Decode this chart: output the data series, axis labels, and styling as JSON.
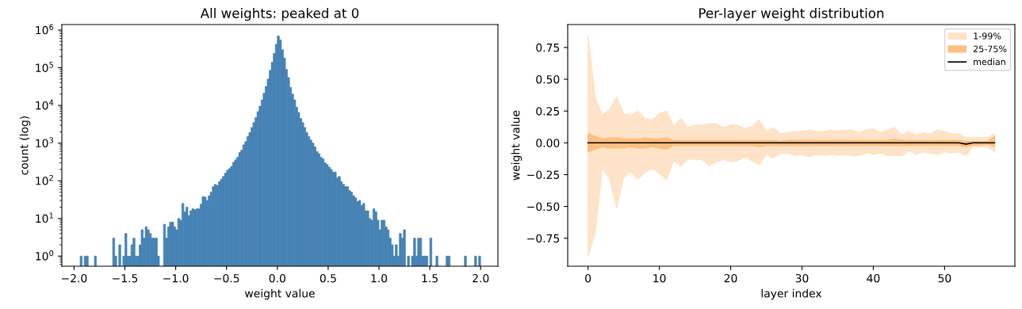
{
  "chart_data": [
    {
      "type": "histogram",
      "title": "All weights: peaked at 0",
      "xlabel": "weight value",
      "ylabel": "count (log)",
      "color": "#4682b4",
      "log": "y",
      "grid": false,
      "legend": false,
      "bins": [
        -2.0,
        -1.98,
        -1.96,
        -1.94,
        -1.92,
        -1.9,
        -1.88,
        -1.86,
        -1.84,
        -1.82,
        -1.8,
        -1.78,
        -1.76,
        -1.74,
        -1.72,
        -1.7,
        -1.68,
        -1.66,
        -1.64,
        -1.62,
        -1.6,
        -1.58,
        -1.56,
        -1.54,
        -1.52,
        -1.5,
        -1.48,
        -1.46,
        -1.44,
        -1.42,
        -1.4,
        -1.38,
        -1.36,
        -1.34,
        -1.32,
        -1.3,
        -1.28,
        -1.26,
        -1.24,
        -1.22,
        -1.2,
        -1.18,
        -1.16,
        -1.14,
        -1.12,
        -1.1,
        -1.08,
        -1.06,
        -1.04,
        -1.02,
        -1.0,
        -0.98,
        -0.96,
        -0.94,
        -0.92,
        -0.9,
        -0.88,
        -0.86,
        -0.84,
        -0.82,
        -0.8,
        -0.78,
        -0.76,
        -0.74,
        -0.72,
        -0.7,
        -0.68,
        -0.66,
        -0.64,
        -0.62,
        -0.6,
        -0.58,
        -0.56,
        -0.54,
        -0.52,
        -0.5,
        -0.48,
        -0.46,
        -0.44,
        -0.42,
        -0.4,
        -0.38,
        -0.36,
        -0.34,
        -0.32,
        -0.3,
        -0.28,
        -0.26,
        -0.24,
        -0.22,
        -0.2,
        -0.18,
        -0.16,
        -0.14,
        -0.12,
        -0.1,
        -0.08,
        -0.06,
        -0.04,
        -0.02,
        0.0,
        0.02,
        0.04,
        0.06,
        0.08,
        0.1,
        0.12,
        0.14,
        0.16,
        0.18,
        0.2,
        0.22,
        0.24,
        0.26,
        0.28,
        0.3,
        0.32,
        0.34,
        0.36,
        0.38,
        0.4,
        0.42,
        0.44,
        0.46,
        0.48,
        0.5,
        0.52,
        0.54,
        0.56,
        0.58,
        0.6,
        0.62,
        0.64,
        0.66,
        0.68,
        0.7,
        0.72,
        0.74,
        0.76,
        0.78,
        0.8,
        0.82,
        0.84,
        0.86,
        0.88,
        0.9,
        0.92,
        0.94,
        0.96,
        0.98,
        1.0,
        1.02,
        1.04,
        1.06,
        1.08,
        1.1,
        1.12,
        1.14,
        1.16,
        1.18,
        1.2,
        1.22,
        1.24,
        1.26,
        1.28,
        1.3,
        1.32,
        1.34,
        1.36,
        1.38,
        1.4,
        1.42,
        1.44,
        1.46,
        1.48,
        1.5,
        1.52,
        1.54,
        1.56,
        1.58,
        1.6,
        1.62,
        1.64,
        1.66,
        1.68,
        1.7,
        1.72,
        1.74,
        1.76,
        1.78,
        1.8,
        1.82,
        1.84,
        1.86,
        1.88,
        1.9,
        1.92,
        1.94,
        1.96,
        1.98,
        2.0
      ],
      "values": [
        null,
        null,
        null,
        1,
        null,
        1,
        1,
        null,
        null,
        null,
        1,
        null,
        null,
        null,
        null,
        null,
        null,
        null,
        null,
        3,
        1,
        null,
        2,
        null,
        1,
        4,
        1,
        1,
        2,
        3,
        1,
        1,
        2,
        5,
        3,
        6,
        5,
        4,
        3,
        3,
        3,
        1,
        null,
        null,
        7,
        3,
        6,
        8,
        8,
        6,
        5,
        10,
        9,
        25,
        15,
        20,
        12,
        16,
        18,
        17,
        18,
        18,
        24,
        38,
        37,
        30,
        40,
        50,
        70,
        80,
        75,
        95,
        110,
        130,
        160,
        190,
        210,
        240,
        310,
        360,
        420,
        560,
        650,
        900,
        1100,
        1500,
        1900,
        2600,
        3500,
        4800,
        6800,
        9500,
        14000,
        21000,
        32000,
        50000,
        85000,
        140000,
        240000,
        420000,
        700000,
        550000,
        300000,
        180000,
        90000,
        55000,
        30000,
        20000,
        14000,
        9000,
        6500,
        4500,
        3500,
        2600,
        1900,
        1500,
        1200,
        1000,
        800,
        600,
        520,
        420,
        380,
        300,
        270,
        230,
        200,
        170,
        170,
        120,
        130,
        95,
        80,
        70,
        70,
        55,
        50,
        40,
        35,
        28,
        30,
        22,
        25,
        16,
        16,
        10,
        9,
        18,
        15,
        9,
        5,
        9,
        9,
        6,
        5,
        3,
        2,
        1,
        2,
        1,
        4,
        3,
        5,
        null,
        1,
        null,
        1,
        3,
        1,
        3,
        3,
        1,
        1,
        1,
        null,
        3,
        null,
        null,
        1,
        null,
        null,
        null,
        null,
        1,
        1,
        null,
        null,
        null,
        null,
        null,
        null,
        null,
        1,
        null,
        null,
        null,
        null,
        1,
        null,
        1
      ],
      "xlim": [
        -2.12,
        2.17
      ],
      "ylim": [
        0.54,
        1400000
      ],
      "xticks": [
        {
          "value": -2.0,
          "label": "−2.0"
        },
        {
          "value": -1.5,
          "label": "−1.5"
        },
        {
          "value": -1.0,
          "label": "−1.0"
        },
        {
          "value": -0.5,
          "label": "−0.5"
        },
        {
          "value": 0.0,
          "label": "0.0"
        },
        {
          "value": 0.5,
          "label": "0.5"
        },
        {
          "value": 1.0,
          "label": "1.0"
        },
        {
          "value": 1.5,
          "label": "1.5"
        },
        {
          "value": 2.0,
          "label": "2.0"
        }
      ],
      "yticks": [
        {
          "value": 1,
          "label": "10$^{0}$"
        },
        {
          "value": 10,
          "label": "10$^{1}$"
        },
        {
          "value": 100,
          "label": "10$^{2}$"
        },
        {
          "value": 1000,
          "label": "10$^{3}$"
        },
        {
          "value": 10000,
          "label": "10$^{4}$"
        },
        {
          "value": 100000,
          "label": "10$^{5}$"
        },
        {
          "value": 1000000,
          "label": "10$^{6}$"
        }
      ]
    },
    {
      "type": "area",
      "title": "Per-layer weight distribution",
      "xlabel": "layer index",
      "ylabel": "weight value",
      "grid": false,
      "legend": "top right",
      "x": [
        0,
        1,
        2,
        3,
        4,
        5,
        6,
        7,
        8,
        9,
        10,
        11,
        12,
        13,
        14,
        15,
        16,
        17,
        18,
        19,
        20,
        21,
        22,
        23,
        24,
        25,
        26,
        27,
        28,
        29,
        30,
        31,
        32,
        33,
        34,
        35,
        36,
        37,
        38,
        39,
        40,
        41,
        42,
        43,
        44,
        45,
        46,
        47,
        48,
        49,
        50,
        51,
        52,
        53,
        54,
        55,
        56,
        57
      ],
      "series": [
        {
          "name": "1-99%",
          "type": "line",
          "color": "#ffe3c8",
          "values": [
            null,
            null,
            null,
            null,
            null,
            null,
            null,
            null,
            null,
            null,
            null,
            null,
            null,
            null,
            null,
            null,
            null,
            null,
            null,
            null,
            null,
            null,
            null,
            null,
            null,
            null,
            null,
            null,
            null,
            null,
            null,
            null,
            null,
            null,
            null,
            null,
            null,
            null,
            null,
            null,
            null,
            null,
            null,
            null,
            null,
            null,
            null,
            null,
            null,
            null,
            null,
            null,
            null,
            null,
            null,
            null,
            null,
            null
          ],
          "lower": [
            -0.89,
            -0.71,
            -0.2,
            -0.28,
            -0.51,
            -0.27,
            -0.23,
            -0.29,
            -0.23,
            -0.2,
            -0.24,
            -0.29,
            -0.14,
            -0.18,
            -0.13,
            -0.13,
            -0.13,
            -0.18,
            -0.15,
            -0.13,
            -0.15,
            -0.14,
            -0.11,
            -0.14,
            -0.17,
            -0.09,
            -0.12,
            -0.08,
            -0.08,
            -0.1,
            -0.09,
            -0.11,
            -0.09,
            -0.1,
            -0.09,
            -0.1,
            -0.09,
            -0.1,
            -0.1,
            -0.08,
            -0.09,
            -0.08,
            -0.1,
            -0.1,
            -0.1,
            -0.06,
            -0.09,
            -0.07,
            -0.08,
            -0.09,
            -0.07,
            -0.08,
            -0.07,
            -0.1,
            -0.03,
            -0.03,
            -0.03,
            -0.07
          ],
          "upper": [
            0.84,
            0.36,
            0.22,
            0.26,
            0.36,
            0.23,
            0.22,
            0.25,
            0.19,
            0.18,
            0.23,
            0.25,
            0.13,
            0.19,
            0.12,
            0.14,
            0.14,
            0.15,
            0.15,
            0.12,
            0.14,
            0.14,
            0.11,
            0.13,
            0.18,
            0.09,
            0.12,
            0.07,
            0.08,
            0.09,
            0.09,
            0.1,
            0.09,
            0.09,
            0.1,
            0.09,
            0.1,
            0.1,
            0.08,
            0.1,
            0.11,
            0.08,
            0.1,
            0.12,
            0.06,
            0.09,
            0.06,
            0.08,
            0.07,
            0.1,
            0.09,
            0.07,
            0.07,
            0.04,
            0.04,
            0.04,
            0.04,
            0.07
          ]
        },
        {
          "name": "25-75%",
          "type": "line",
          "color": "#fdbf80",
          "values": [
            null,
            null,
            null,
            null,
            null,
            null,
            null,
            null,
            null,
            null,
            null,
            null,
            null,
            null,
            null,
            null,
            null,
            null,
            null,
            null,
            null,
            null,
            null,
            null,
            null,
            null,
            null,
            null,
            null,
            null,
            null,
            null,
            null,
            null,
            null,
            null,
            null,
            null,
            null,
            null,
            null,
            null,
            null,
            null,
            null,
            null,
            null,
            null,
            null,
            null,
            null,
            null,
            null,
            null,
            null,
            null,
            null,
            null
          ],
          "lower": [
            -0.07,
            -0.05,
            -0.03,
            -0.04,
            -0.04,
            -0.04,
            -0.03,
            -0.04,
            -0.04,
            -0.03,
            -0.04,
            -0.05,
            -0.02,
            -0.02,
            -0.02,
            -0.02,
            -0.02,
            -0.02,
            -0.02,
            -0.02,
            -0.02,
            -0.02,
            -0.02,
            -0.02,
            -0.03,
            -0.02,
            -0.02,
            -0.02,
            -0.02,
            -0.02,
            -0.02,
            -0.02,
            -0.02,
            -0.02,
            -0.02,
            -0.02,
            -0.02,
            -0.02,
            -0.02,
            -0.02,
            -0.02,
            -0.02,
            -0.02,
            -0.02,
            -0.02,
            -0.02,
            -0.02,
            -0.02,
            -0.02,
            -0.02,
            -0.02,
            -0.02,
            -0.02,
            -0.03,
            -0.02,
            -0.02,
            -0.01,
            -0.03
          ],
          "upper": [
            0.07,
            0.05,
            0.03,
            0.04,
            0.04,
            0.03,
            0.03,
            0.03,
            0.04,
            0.03,
            0.03,
            0.04,
            0.02,
            0.02,
            0.02,
            0.02,
            0.02,
            0.02,
            0.02,
            0.02,
            0.02,
            0.02,
            0.02,
            0.02,
            0.02,
            0.02,
            0.02,
            0.01,
            0.02,
            0.02,
            0.02,
            0.02,
            0.02,
            0.02,
            0.02,
            0.02,
            0.02,
            0.02,
            0.02,
            0.02,
            0.02,
            0.02,
            0.02,
            0.03,
            0.02,
            0.02,
            0.02,
            0.02,
            0.02,
            0.02,
            0.02,
            0.02,
            0.02,
            0.01,
            0.01,
            0.01,
            0.01,
            0.05
          ]
        },
        {
          "name": "median",
          "type": "line",
          "color": "#000000",
          "values": [
            0,
            0,
            0,
            0,
            0,
            0,
            0,
            0,
            0,
            0,
            0,
            0,
            0,
            0,
            0,
            0,
            0,
            0,
            0,
            0,
            0,
            0,
            0,
            0,
            0,
            0,
            0,
            0,
            0,
            0,
            0,
            0,
            0,
            0,
            0,
            0,
            0,
            0,
            0,
            0,
            0,
            0,
            0,
            0,
            0,
            0,
            0,
            0,
            0,
            0,
            0,
            0,
            0,
            -0.01,
            0,
            0,
            0,
            0
          ]
        }
      ],
      "xlim": [
        -2.85,
        59.85
      ],
      "ylim": [
        -0.97,
        0.93
      ],
      "xticks": [
        0,
        10,
        20,
        30,
        40,
        50
      ],
      "yticks": [
        {
          "value": -0.75,
          "label": "−0.75"
        },
        {
          "value": -0.5,
          "label": "−0.50"
        },
        {
          "value": -0.25,
          "label": "−0.25"
        },
        {
          "value": 0.0,
          "label": "0.00"
        },
        {
          "value": 0.25,
          "label": "0.25"
        },
        {
          "value": 0.5,
          "label": "0.50"
        },
        {
          "value": 0.75,
          "label": "0.75"
        }
      ]
    }
  ]
}
